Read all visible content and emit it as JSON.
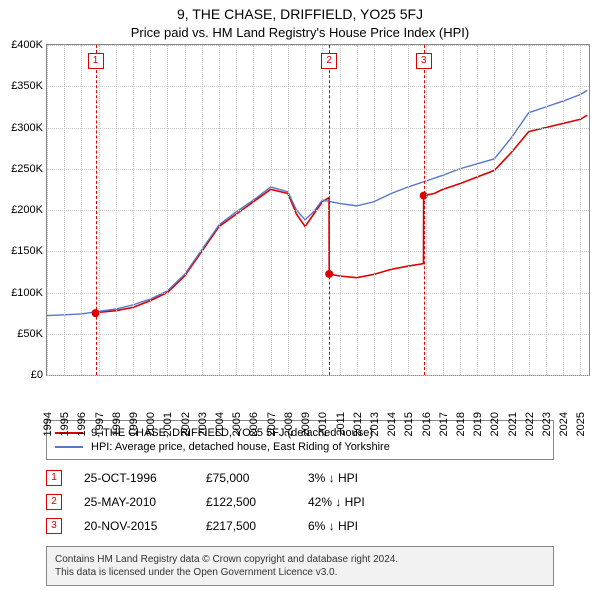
{
  "title": "9, THE CHASE, DRIFFIELD, YO25 5FJ",
  "subtitle": "Price paid vs. HM Land Registry's House Price Index (HPI)",
  "chart": {
    "type": "line",
    "background_color": "#ffffff",
    "grid_color": "#cccccc",
    "border_color": "#888888",
    "ylim": [
      0,
      400000
    ],
    "ytick_step": 50000,
    "yticks": [
      {
        "v": 0,
        "label": "£0"
      },
      {
        "v": 50000,
        "label": "£50K"
      },
      {
        "v": 100000,
        "label": "£100K"
      },
      {
        "v": 150000,
        "label": "£150K"
      },
      {
        "v": 200000,
        "label": "£200K"
      },
      {
        "v": 250000,
        "label": "£250K"
      },
      {
        "v": 300000,
        "label": "£300K"
      },
      {
        "v": 350000,
        "label": "£350K"
      },
      {
        "v": 400000,
        "label": "£400K"
      }
    ],
    "xlim": [
      1994,
      2025.5
    ],
    "xticks": [
      1994,
      1995,
      1996,
      1997,
      1998,
      1999,
      2000,
      2001,
      2002,
      2003,
      2004,
      2005,
      2006,
      2007,
      2008,
      2009,
      2010,
      2011,
      2012,
      2013,
      2014,
      2015,
      2016,
      2017,
      2018,
      2019,
      2020,
      2021,
      2022,
      2023,
      2024,
      2025
    ],
    "series": [
      {
        "name": "price_paid",
        "label": "9, THE CHASE, DRIFFIELD, YO25 5FJ (detached house)",
        "color": "#dd0000",
        "line_width": 1.6,
        "data": [
          [
            1996.82,
            75000
          ],
          [
            1997,
            76000
          ],
          [
            1998,
            78000
          ],
          [
            1999,
            82000
          ],
          [
            2000,
            90000
          ],
          [
            2001,
            100000
          ],
          [
            2002,
            120000
          ],
          [
            2003,
            150000
          ],
          [
            2004,
            180000
          ],
          [
            2005,
            195000
          ],
          [
            2006,
            210000
          ],
          [
            2007,
            225000
          ],
          [
            2008,
            220000
          ],
          [
            2008.5,
            195000
          ],
          [
            2009,
            180000
          ],
          [
            2009.5,
            195000
          ],
          [
            2010,
            210000
          ],
          [
            2010.39,
            215000
          ],
          [
            2010.4,
            122500
          ],
          [
            2011,
            120000
          ],
          [
            2012,
            118000
          ],
          [
            2013,
            122000
          ],
          [
            2014,
            128000
          ],
          [
            2015,
            132000
          ],
          [
            2015.88,
            135000
          ],
          [
            2015.89,
            217500
          ],
          [
            2016.5,
            220000
          ],
          [
            2017,
            225000
          ],
          [
            2018,
            232000
          ],
          [
            2019,
            240000
          ],
          [
            2020,
            248000
          ],
          [
            2021,
            270000
          ],
          [
            2022,
            295000
          ],
          [
            2023,
            300000
          ],
          [
            2024,
            305000
          ],
          [
            2025,
            310000
          ],
          [
            2025.4,
            315000
          ]
        ]
      },
      {
        "name": "hpi",
        "label": "HPI: Average price, detached house, East Riding of Yorkshire",
        "color": "#5577cc",
        "line_width": 1.4,
        "data": [
          [
            1994,
            72000
          ],
          [
            1995,
            73000
          ],
          [
            1996,
            74000
          ],
          [
            1997,
            77000
          ],
          [
            1998,
            80000
          ],
          [
            1999,
            85000
          ],
          [
            2000,
            92000
          ],
          [
            2001,
            102000
          ],
          [
            2002,
            122000
          ],
          [
            2003,
            152000
          ],
          [
            2004,
            182000
          ],
          [
            2005,
            198000
          ],
          [
            2006,
            212000
          ],
          [
            2007,
            228000
          ],
          [
            2008,
            222000
          ],
          [
            2008.5,
            200000
          ],
          [
            2009,
            188000
          ],
          [
            2009.5,
            198000
          ],
          [
            2010,
            212000
          ],
          [
            2011,
            208000
          ],
          [
            2012,
            205000
          ],
          [
            2013,
            210000
          ],
          [
            2014,
            220000
          ],
          [
            2015,
            228000
          ],
          [
            2016,
            235000
          ],
          [
            2017,
            242000
          ],
          [
            2018,
            250000
          ],
          [
            2019,
            256000
          ],
          [
            2020,
            262000
          ],
          [
            2021,
            288000
          ],
          [
            2022,
            318000
          ],
          [
            2023,
            325000
          ],
          [
            2024,
            332000
          ],
          [
            2025,
            340000
          ],
          [
            2025.4,
            345000
          ]
        ]
      }
    ],
    "markers": [
      {
        "n": "1",
        "x": 1996.82,
        "y": 75000,
        "color": "#dd0000"
      },
      {
        "n": "2",
        "x": 2010.4,
        "y": 122500,
        "color": "#dd0000"
      },
      {
        "n": "3",
        "x": 2015.89,
        "y": 217500,
        "color": "#dd0000"
      }
    ]
  },
  "legend": {
    "items": [
      {
        "color": "#dd0000",
        "label": "9, THE CHASE, DRIFFIELD, YO25 5FJ (detached house)"
      },
      {
        "color": "#5577cc",
        "label": "HPI: Average price, detached house, East Riding of Yorkshire"
      }
    ]
  },
  "events": [
    {
      "n": "1",
      "date": "25-OCT-1996",
      "price": "£75,000",
      "delta": "3% ↓ HPI"
    },
    {
      "n": "2",
      "date": "25-MAY-2010",
      "price": "£122,500",
      "delta": "42% ↓ HPI"
    },
    {
      "n": "3",
      "date": "20-NOV-2015",
      "price": "£217,500",
      "delta": "6% ↓ HPI"
    }
  ],
  "footer": {
    "line1": "Contains HM Land Registry data © Crown copyright and database right 2024.",
    "line2": "This data is licensed under the Open Government Licence v3.0."
  }
}
